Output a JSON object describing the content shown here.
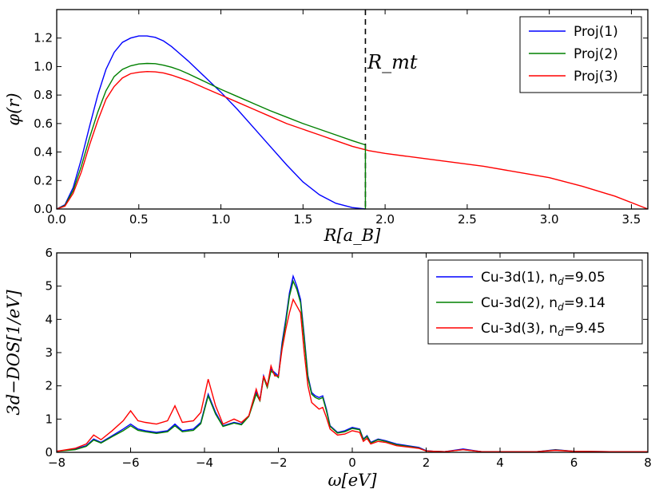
{
  "chart_data": [
    {
      "type": "line",
      "title": "",
      "xlabel": "R[a_B]",
      "ylabel": "φ(r)",
      "xlim": [
        0.0,
        3.6
      ],
      "ylim": [
        0.0,
        1.4
      ],
      "xticks": [
        "0.0",
        "0.5",
        "1.0",
        "1.5",
        "2.0",
        "2.5",
        "3.0",
        "3.5"
      ],
      "yticks": [
        "0.0",
        "0.2",
        "0.4",
        "0.6",
        "0.8",
        "1.0",
        "1.2"
      ],
      "legend_position": "top-right",
      "annotation": {
        "text": "R_mt",
        "x_value": 1.88
      },
      "rmt_value": 1.88,
      "series": [
        {
          "name": "Proj(1)",
          "color": "#0000ff",
          "x": [
            0.0,
            0.05,
            0.1,
            0.15,
            0.2,
            0.25,
            0.3,
            0.35,
            0.4,
            0.45,
            0.5,
            0.55,
            0.6,
            0.65,
            0.7,
            0.75,
            0.8,
            0.9,
            1.0,
            1.1,
            1.2,
            1.3,
            1.4,
            1.5,
            1.6,
            1.7,
            1.8,
            1.88
          ],
          "y": [
            0.0,
            0.03,
            0.15,
            0.35,
            0.58,
            0.8,
            0.98,
            1.1,
            1.17,
            1.2,
            1.215,
            1.215,
            1.205,
            1.18,
            1.14,
            1.09,
            1.04,
            0.93,
            0.82,
            0.7,
            0.57,
            0.44,
            0.31,
            0.19,
            0.1,
            0.04,
            0.01,
            0.0
          ]
        },
        {
          "name": "Proj(2)",
          "color": "#008000",
          "x": [
            0.0,
            0.05,
            0.1,
            0.15,
            0.2,
            0.25,
            0.3,
            0.35,
            0.4,
            0.45,
            0.5,
            0.55,
            0.6,
            0.65,
            0.7,
            0.75,
            0.8,
            0.9,
            1.0,
            1.1,
            1.2,
            1.3,
            1.4,
            1.5,
            1.6,
            1.7,
            1.8,
            1.88
          ],
          "y": [
            0.0,
            0.025,
            0.13,
            0.3,
            0.5,
            0.68,
            0.83,
            0.93,
            0.98,
            1.005,
            1.018,
            1.022,
            1.02,
            1.01,
            0.995,
            0.975,
            0.95,
            0.895,
            0.84,
            0.79,
            0.74,
            0.69,
            0.645,
            0.6,
            0.56,
            0.52,
            0.48,
            0.45
          ]
        },
        {
          "name": "Proj(3)",
          "color": "#ff0000",
          "x": [
            0.0,
            0.05,
            0.1,
            0.15,
            0.2,
            0.25,
            0.3,
            0.35,
            0.4,
            0.45,
            0.5,
            0.55,
            0.6,
            0.65,
            0.7,
            0.75,
            0.8,
            0.9,
            1.0,
            1.1,
            1.2,
            1.3,
            1.4,
            1.5,
            1.6,
            1.7,
            1.8,
            1.9,
            2.0,
            2.2,
            2.4,
            2.6,
            2.8,
            3.0,
            3.2,
            3.4,
            3.6
          ],
          "y": [
            0.0,
            0.02,
            0.11,
            0.26,
            0.45,
            0.62,
            0.77,
            0.86,
            0.92,
            0.95,
            0.96,
            0.965,
            0.963,
            0.955,
            0.94,
            0.92,
            0.9,
            0.85,
            0.8,
            0.75,
            0.7,
            0.65,
            0.6,
            0.56,
            0.52,
            0.48,
            0.44,
            0.41,
            0.39,
            0.36,
            0.33,
            0.3,
            0.26,
            0.22,
            0.16,
            0.09,
            0.0
          ]
        }
      ]
    },
    {
      "type": "line",
      "title": "",
      "xlabel": "ω[eV]",
      "ylabel": "3d−DOS[1/eV]",
      "xlim": [
        -8,
        8
      ],
      "ylim": [
        0,
        6
      ],
      "xticks": [
        "−8",
        "−6",
        "−4",
        "−2",
        "0",
        "2",
        "4",
        "6",
        "8"
      ],
      "yticks": [
        "0",
        "1",
        "2",
        "3",
        "4",
        "5",
        "6"
      ],
      "legend_position": "top-right",
      "series": [
        {
          "name": "Cu-3d(1), n",
          "name_sub": "d",
          "name_value": "=9.05",
          "color": "#0000ff",
          "x": [
            -8.0,
            -7.5,
            -7.2,
            -7.0,
            -6.8,
            -6.5,
            -6.2,
            -6.0,
            -5.8,
            -5.6,
            -5.3,
            -5.0,
            -4.8,
            -4.6,
            -4.3,
            -4.1,
            -3.9,
            -3.7,
            -3.5,
            -3.2,
            -3.0,
            -2.8,
            -2.6,
            -2.5,
            -2.4,
            -2.3,
            -2.2,
            -2.1,
            -2.0,
            -1.9,
            -1.8,
            -1.7,
            -1.6,
            -1.5,
            -1.4,
            -1.3,
            -1.2,
            -1.1,
            -1.0,
            -0.9,
            -0.8,
            -0.7,
            -0.6,
            -0.4,
            -0.2,
            0.0,
            0.2,
            0.3,
            0.4,
            0.5,
            0.7,
            0.9,
            1.2,
            1.5,
            1.8,
            2.0,
            2.2,
            2.5,
            3.0,
            3.5,
            4.0,
            5.0,
            5.5,
            6.0,
            7.0,
            8.0
          ],
          "y": [
            0.03,
            0.1,
            0.2,
            0.4,
            0.3,
            0.5,
            0.7,
            0.85,
            0.7,
            0.65,
            0.6,
            0.65,
            0.85,
            0.65,
            0.7,
            0.9,
            1.75,
            1.2,
            0.8,
            0.9,
            0.85,
            1.1,
            1.8,
            1.6,
            2.3,
            2.0,
            2.5,
            2.4,
            2.3,
            3.3,
            4.0,
            4.8,
            5.3,
            5.0,
            4.6,
            3.5,
            2.3,
            1.8,
            1.7,
            1.65,
            1.7,
            1.3,
            0.8,
            0.6,
            0.65,
            0.75,
            0.7,
            0.4,
            0.5,
            0.3,
            0.4,
            0.35,
            0.25,
            0.2,
            0.15,
            0.05,
            0.03,
            0.02,
            0.1,
            0.02,
            0.02,
            0.02,
            0.08,
            0.03,
            0.02,
            0.02
          ]
        },
        {
          "name": "Cu-3d(2), n",
          "name_sub": "d",
          "name_value": "=9.14",
          "color": "#008000",
          "x": [
            -8.0,
            -7.5,
            -7.2,
            -7.0,
            -6.8,
            -6.5,
            -6.2,
            -6.0,
            -5.8,
            -5.6,
            -5.3,
            -5.0,
            -4.8,
            -4.6,
            -4.3,
            -4.1,
            -3.9,
            -3.7,
            -3.5,
            -3.2,
            -3.0,
            -2.8,
            -2.6,
            -2.5,
            -2.4,
            -2.3,
            -2.2,
            -2.1,
            -2.0,
            -1.9,
            -1.8,
            -1.7,
            -1.6,
            -1.5,
            -1.4,
            -1.3,
            -1.2,
            -1.1,
            -1.0,
            -0.9,
            -0.8,
            -0.7,
            -0.6,
            -0.4,
            -0.2,
            0.0,
            0.2,
            0.3,
            0.4,
            0.5,
            0.7,
            0.9,
            1.2,
            1.5,
            1.8,
            2.0,
            2.2,
            2.5,
            3.0,
            3.5,
            4.0,
            5.0,
            5.5,
            6.0,
            7.0,
            8.0
          ],
          "y": [
            0.03,
            0.08,
            0.18,
            0.37,
            0.28,
            0.47,
            0.65,
            0.8,
            0.66,
            0.62,
            0.57,
            0.62,
            0.8,
            0.62,
            0.66,
            0.86,
            1.7,
            1.15,
            0.78,
            0.88,
            0.83,
            1.08,
            1.75,
            1.55,
            2.25,
            1.95,
            2.45,
            2.35,
            2.25,
            3.2,
            3.9,
            4.7,
            5.15,
            4.9,
            4.5,
            3.4,
            2.25,
            1.75,
            1.65,
            1.6,
            1.65,
            1.25,
            0.78,
            0.58,
            0.62,
            0.72,
            0.68,
            0.38,
            0.48,
            0.28,
            0.38,
            0.33,
            0.23,
            0.18,
            0.13,
            0.04,
            0.03,
            0.02,
            0.08,
            0.02,
            0.02,
            0.02,
            0.07,
            0.03,
            0.02,
            0.02
          ]
        },
        {
          "name": "Cu-3d(3), n",
          "name_sub": "d",
          "name_value": "=9.45",
          "color": "#ff0000",
          "x": [
            -8.0,
            -7.5,
            -7.2,
            -7.0,
            -6.8,
            -6.5,
            -6.2,
            -6.0,
            -5.8,
            -5.6,
            -5.3,
            -5.0,
            -4.8,
            -4.6,
            -4.3,
            -4.1,
            -3.9,
            -3.7,
            -3.5,
            -3.2,
            -3.0,
            -2.8,
            -2.6,
            -2.5,
            -2.4,
            -2.3,
            -2.2,
            -2.1,
            -2.0,
            -1.9,
            -1.8,
            -1.7,
            -1.6,
            -1.5,
            -1.4,
            -1.3,
            -1.2,
            -1.1,
            -1.0,
            -0.9,
            -0.8,
            -0.7,
            -0.6,
            -0.4,
            -0.2,
            0.0,
            0.2,
            0.3,
            0.4,
            0.5,
            0.7,
            0.9,
            1.2,
            1.5,
            1.8,
            2.0,
            2.2,
            2.5,
            3.0,
            3.5,
            4.0,
            5.0,
            5.5,
            6.0,
            7.0,
            8.0
          ],
          "y": [
            0.03,
            0.12,
            0.25,
            0.52,
            0.38,
            0.65,
            0.95,
            1.25,
            0.95,
            0.9,
            0.85,
            0.95,
            1.4,
            0.9,
            0.95,
            1.2,
            2.2,
            1.4,
            0.85,
            1.0,
            0.9,
            1.1,
            1.9,
            1.55,
            2.3,
            2.0,
            2.6,
            2.3,
            2.3,
            3.1,
            3.7,
            4.2,
            4.6,
            4.4,
            4.2,
            3.0,
            2.0,
            1.5,
            1.4,
            1.3,
            1.35,
            1.05,
            0.7,
            0.52,
            0.55,
            0.65,
            0.6,
            0.33,
            0.42,
            0.25,
            0.33,
            0.3,
            0.2,
            0.16,
            0.12,
            0.04,
            0.03,
            0.02,
            0.08,
            0.02,
            0.02,
            0.02,
            0.06,
            0.03,
            0.02,
            0.02
          ]
        }
      ]
    }
  ]
}
